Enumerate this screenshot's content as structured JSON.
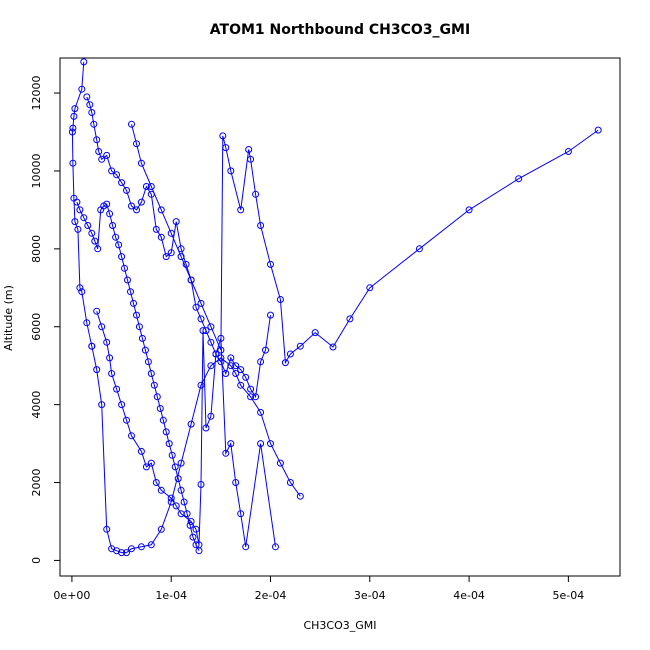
{
  "chart_data": {
    "type": "scatter",
    "title": "ATOM1 Northbound CH3CO3_GMI",
    "xlabel": "CH3CO3_GMI",
    "ylabel": "Altitude (m)",
    "xlim": [
      -1.2e-05,
      0.000552
    ],
    "ylim": [
      -400,
      12900
    ],
    "x_ticks": [
      0,
      0.0001,
      0.0002,
      0.0003,
      0.0004,
      0.0005
    ],
    "x_tick_labels": [
      "0e+00",
      "1e-04",
      "2e-04",
      "3e-04",
      "4e-04",
      "5e-04"
    ],
    "y_ticks": [
      0,
      2000,
      4000,
      6000,
      8000,
      10000,
      12000
    ],
    "y_tick_labels": [
      "0",
      "2000",
      "4000",
      "6000",
      "8000",
      "10000",
      "12000"
    ],
    "grid": false,
    "legend": "none",
    "colors": {
      "series": "#0000ff",
      "axis": "#000000"
    },
    "series": [
      {
        "x": [
          1.2e-05,
          1e-05,
          3e-06,
          2e-06,
          1e-06,
          5e-07,
          1e-06,
          2e-06,
          3e-06,
          6e-06,
          8e-06,
          1e-05,
          1.5e-05,
          2e-05,
          2e-05,
          2.5e-05,
          3e-05,
          3.5e-05,
          4e-05,
          4.5e-05,
          5e-05,
          5.5e-05,
          6e-05,
          7e-05,
          8e-05,
          9e-05,
          0.0001,
          0.00011,
          0.00012,
          0.00013,
          0.00014,
          0.00015,
          0.00016,
          0.000165,
          0.00017,
          0.00018,
          0.00019,
          0.0002,
          0.00021,
          0.00022,
          0.00023
        ],
        "y": [
          12800,
          12100,
          11600,
          11400,
          11100,
          11000,
          10200,
          9300,
          8700,
          8500,
          7000,
          6900,
          6100,
          5500,
          5500,
          4900,
          4000,
          800,
          300,
          250,
          200,
          200,
          300,
          350,
          400,
          800,
          1500,
          2500,
          3500,
          4500,
          5000,
          5200,
          5000,
          4800,
          4500,
          4200,
          3800,
          3000,
          2500,
          2000,
          1650
        ]
      },
      {
        "x": [
          1.5e-05,
          1.8e-05,
          2e-05,
          2.2e-05,
          2.5e-05,
          2.7e-05,
          3e-05,
          3.5e-05,
          4e-05,
          4.5e-05,
          5e-05,
          5.5e-05,
          6e-05,
          6.5e-05,
          7e-05,
          7.5e-05,
          8e-05,
          8.5e-05,
          9e-05,
          9.5e-05,
          0.0001,
          0.000105,
          0.00011,
          0.000115,
          0.00012,
          0.000125,
          0.00013,
          0.000135,
          0.00014,
          0.000145,
          0.00015,
          0.000155,
          0.00016,
          0.000165,
          0.00017,
          0.000175,
          0.00018,
          0.000185,
          0.00019,
          0.000195,
          0.0002
        ],
        "y": [
          11900,
          11700,
          11500,
          11200,
          10800,
          10500,
          10300,
          10400,
          10000,
          9900,
          9700,
          9500,
          9100,
          9000,
          9200,
          9600,
          9400,
          8500,
          8300,
          7800,
          7900,
          8700,
          8000,
          7600,
          7200,
          6500,
          6200,
          5900,
          5600,
          5300,
          5100,
          4800,
          5200,
          5000,
          4900,
          4700,
          4400,
          4200,
          5100,
          5400,
          6300
        ]
      },
      {
        "x": [
          5e-06,
          8e-06,
          1.2e-05,
          1.6e-05,
          2e-05,
          2.3e-05,
          2.6e-05,
          2.9e-05,
          3.2e-05,
          3.5e-05,
          3.8e-05,
          4.1e-05,
          4.4e-05,
          4.7e-05,
          5e-05,
          5.3e-05,
          5.6e-05,
          5.9e-05,
          6.2e-05,
          6.5e-05,
          6.8e-05,
          7.1e-05,
          7.4e-05,
          7.7e-05,
          8e-05,
          8.3e-05,
          8.6e-05,
          8.9e-05,
          9.2e-05,
          9.5e-05,
          9.8e-05,
          0.000101,
          0.000104,
          0.000107,
          0.00011,
          0.000113,
          0.000116,
          0.000119,
          0.000122,
          0.000125,
          0.000128
        ],
        "y": [
          9200,
          9000,
          8800,
          8600,
          8400,
          8200,
          8000,
          9000,
          9100,
          9150,
          8900,
          8600,
          8300,
          8100,
          7800,
          7500,
          7200,
          6900,
          6600,
          6300,
          6000,
          5700,
          5400,
          5100,
          4800,
          4500,
          4200,
          3900,
          3600,
          3300,
          3000,
          2700,
          2400,
          2100,
          1800,
          1500,
          1200,
          900,
          600,
          400,
          250
        ]
      },
      {
        "x": [
          6e-05,
          6.5e-05,
          7e-05,
          8e-05,
          9e-05,
          0.0001,
          0.00011,
          0.00012,
          0.00013,
          0.00014,
          0.00015,
          0.000152,
          0.000155,
          0.00016,
          0.00017,
          0.000178,
          0.00018,
          0.000185,
          0.00019,
          0.0002,
          0.00021,
          0.000215,
          0.00022,
          0.00023,
          0.000245,
          0.000263,
          0.00028,
          0.0003,
          0.00035,
          0.0004,
          0.00045,
          0.0005,
          0.00053
        ],
        "y": [
          11200,
          10700,
          10200,
          9600,
          9000,
          8400,
          7800,
          7200,
          6600,
          6000,
          5400,
          10900,
          10600,
          10000,
          9000,
          10550,
          10300,
          9400,
          8600,
          7600,
          6700,
          5080,
          5300,
          5500,
          5850,
          5480,
          6200,
          7000,
          8000,
          9000,
          9800,
          10500,
          11050
        ]
      },
      {
        "x": [
          2.5e-05,
          3e-05,
          3.5e-05,
          3.8e-05,
          4e-05,
          4.5e-05,
          5e-05,
          5.5e-05,
          6e-05,
          7e-05,
          7.5e-05,
          8e-05,
          8.5e-05,
          9e-05,
          0.0001,
          0.000105,
          0.00011,
          0.00012,
          0.000125,
          0.000128,
          0.00013,
          0.000132,
          0.000135,
          0.00014,
          0.000145,
          0.00015,
          0.000155,
          0.00016,
          0.000165,
          0.00017,
          0.000175,
          0.00019,
          0.000205
        ],
        "y": [
          6400,
          6000,
          5600,
          5200,
          4800,
          4400,
          4000,
          3600,
          3200,
          2800,
          2400,
          2500,
          2000,
          1800,
          1600,
          1400,
          1200,
          1000,
          800,
          400,
          1950,
          5900,
          3400,
          3700,
          5300,
          5700,
          2750,
          3000,
          2000,
          1200,
          350,
          3000,
          350
        ]
      }
    ]
  }
}
